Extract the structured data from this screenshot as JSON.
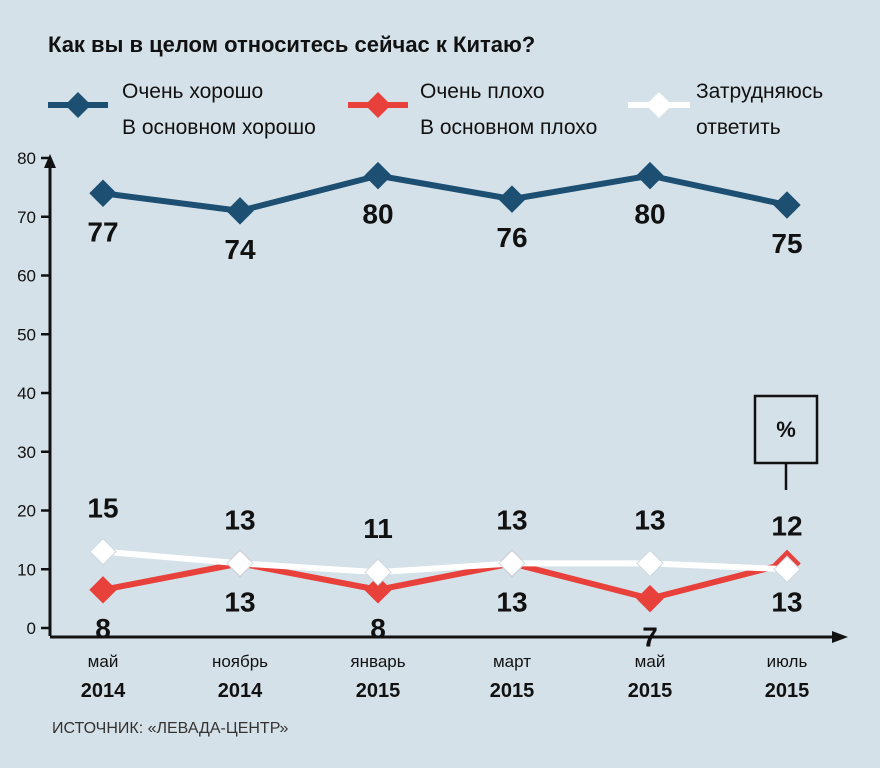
{
  "chart_data": {
    "type": "line",
    "title": "Как вы в целом относитесь сейчас к Китаю?",
    "unit": "%",
    "source": "ИСТОЧНИК: «ЛЕВАДА-ЦЕНТР»",
    "ylim": [
      0,
      80
    ],
    "yticks": [
      0,
      10,
      20,
      30,
      40,
      50,
      60,
      70,
      80
    ],
    "categories": [
      {
        "month": "май",
        "year": "2014"
      },
      {
        "month": "ноябрь",
        "year": "2014"
      },
      {
        "month": "январь",
        "year": "2015"
      },
      {
        "month": "март",
        "year": "2015"
      },
      {
        "month": "май",
        "year": "2015"
      },
      {
        "month": "июль",
        "year": "2015"
      }
    ],
    "legend_position": "top",
    "series": [
      {
        "name_line1": "Очень хорошо",
        "name_line2": "В основном хорошо",
        "color": "#1c4f72",
        "labels": [
          "77",
          "74",
          "80",
          "76",
          "80",
          "75"
        ],
        "values": [
          74,
          71,
          77,
          73,
          77,
          72
        ],
        "label_position": "below"
      },
      {
        "name_line1": "Очень плохо",
        "name_line2": "В основном плохо",
        "color": "#e8403a",
        "labels": [
          "8",
          "13",
          "8",
          "13",
          "7",
          "13"
        ],
        "values": [
          6.5,
          11,
          6.5,
          11,
          5,
          11
        ],
        "label_position": "below"
      },
      {
        "name_line1": "Затрудняюсь",
        "name_line2": "ответить",
        "color": "#ffffff",
        "labels": [
          "15",
          "13",
          "11",
          "13",
          "13",
          "12"
        ],
        "values": [
          13,
          11,
          9.5,
          11,
          11,
          10
        ],
        "label_position": "above"
      }
    ]
  }
}
